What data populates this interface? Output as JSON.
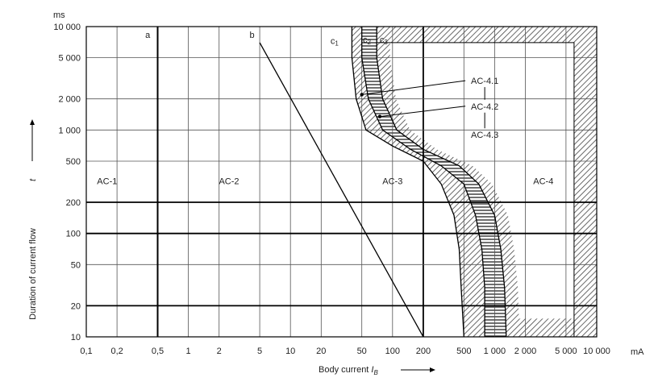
{
  "chart_data": {
    "type": "line",
    "x_scale": "log",
    "y_scale": "log",
    "x_ticks": [
      "0,1",
      "0,2",
      "0,5",
      "1",
      "2",
      "5",
      "10",
      "20",
      "50",
      "100",
      "200",
      "500",
      "1 000",
      "2 000",
      "5 000",
      "10 000"
    ],
    "x_tick_values": [
      0.1,
      0.2,
      0.5,
      1,
      2,
      5,
      10,
      20,
      50,
      100,
      200,
      500,
      1000,
      2000,
      5000,
      10000
    ],
    "y_ticks": [
      "10",
      "20",
      "50",
      "100",
      "200",
      "500",
      "1 000",
      "2 000",
      "5 000",
      "10 000"
    ],
    "y_tick_values": [
      10,
      20,
      50,
      100,
      200,
      500,
      1000,
      2000,
      5000,
      10000
    ],
    "xlim": [
      0.1,
      10000
    ],
    "ylim": [
      10,
      10000
    ],
    "x_unit": "mA",
    "y_unit": "ms",
    "xlabel_prefix": "Body current ",
    "xlabel_symbol": "I",
    "xlabel_sub": "B",
    "ylabel": "Duration of current flow",
    "ylabel_symbol": "t",
    "grid": true,
    "zones": [
      {
        "label": "AC-1",
        "x": 0.16,
        "y": 300
      },
      {
        "label": "AC-2",
        "x": 2.5,
        "y": 300
      },
      {
        "label": "AC-3",
        "x": 100,
        "y": 300
      },
      {
        "label": "AC-4",
        "x": 3000,
        "y": 300
      }
    ],
    "series": [
      {
        "key": "a",
        "points": [
          [
            0.5,
            10
          ],
          [
            0.5,
            10000
          ]
        ]
      },
      {
        "key": "b",
        "points": [
          [
            5,
            7000
          ],
          [
            200,
            10
          ]
        ]
      },
      {
        "key": "c1",
        "points": [
          [
            40,
            10000
          ],
          [
            40,
            5000
          ],
          [
            44,
            2000
          ],
          [
            55,
            1000
          ],
          [
            100,
            700
          ],
          [
            200,
            500
          ],
          [
            300,
            300
          ],
          [
            400,
            150
          ],
          [
            450,
            70
          ],
          [
            470,
            30
          ],
          [
            500,
            10
          ]
        ]
      },
      {
        "key": "c2",
        "points": [
          [
            50,
            10000
          ],
          [
            50,
            5000
          ],
          [
            58,
            2000
          ],
          [
            80,
            1000
          ],
          [
            150,
            650
          ],
          [
            300,
            450
          ],
          [
            500,
            300
          ],
          [
            650,
            150
          ],
          [
            750,
            70
          ],
          [
            800,
            30
          ],
          [
            800,
            10
          ]
        ]
      },
      {
        "key": "c3",
        "points": [
          [
            70,
            10000
          ],
          [
            70,
            5000
          ],
          [
            80,
            2000
          ],
          [
            110,
            1000
          ],
          [
            200,
            650
          ],
          [
            450,
            450
          ],
          [
            700,
            300
          ],
          [
            1000,
            150
          ],
          [
            1150,
            70
          ],
          [
            1250,
            30
          ],
          [
            1300,
            10
          ]
        ]
      }
    ],
    "curve_labels": [
      {
        "text": "a",
        "x": 0.4,
        "y": 7800
      },
      {
        "text": "b",
        "x": 4.2,
        "y": 7800
      },
      {
        "text": "c1",
        "x": 27,
        "y": 6800
      },
      {
        "text": "c2",
        "x": 56,
        "y": 7000
      },
      {
        "text": "c3",
        "x": 82,
        "y": 7000
      }
    ],
    "annotations": [
      {
        "text": "AC-4.1",
        "x": 800,
        "y": 3000,
        "tx": 50,
        "ty": 2200
      },
      {
        "text": "AC-4.2",
        "x": 800,
        "y": 1700,
        "tx": 75,
        "ty": 1350
      },
      {
        "text": "AC-4.3",
        "x": 800,
        "y": 900
      }
    ]
  }
}
